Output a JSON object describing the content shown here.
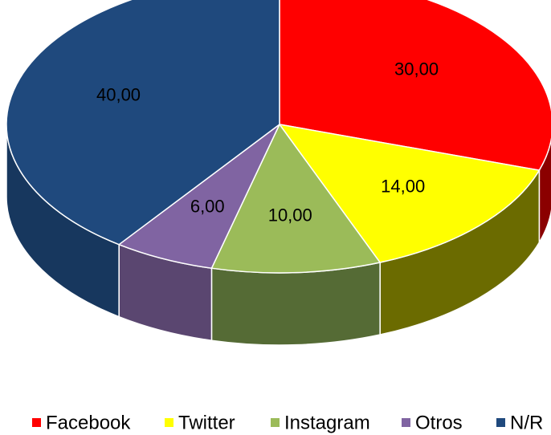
{
  "chart_data": {
    "type": "pie",
    "categories": [
      "Facebook",
      "Twitter",
      "Instagram",
      "Otros",
      "N/R"
    ],
    "values": [
      30,
      14,
      10,
      6,
      40
    ],
    "value_labels": [
      "30,00",
      "14,00",
      "10,00",
      "6,00",
      "40,00"
    ],
    "colors": [
      "#ff0000",
      "#ffff00",
      "#9bbb59",
      "#8064a2",
      "#1f497d"
    ],
    "side_colors": [
      "#8b0000",
      "#6b6b00",
      "#556b35",
      "#5a4670",
      "#17375e"
    ]
  }
}
